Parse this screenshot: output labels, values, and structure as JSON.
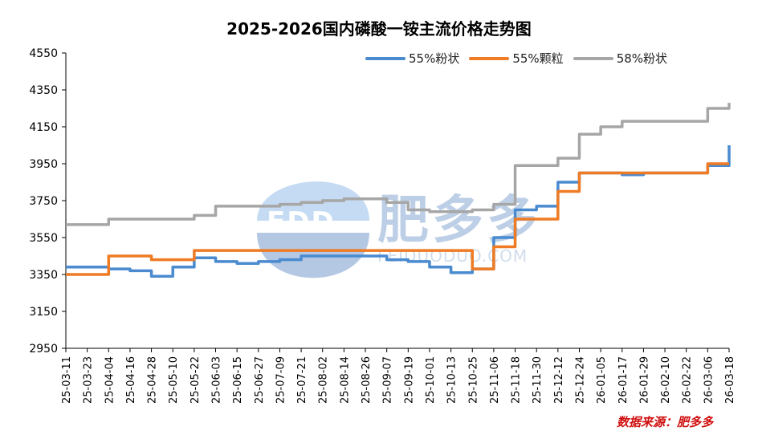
{
  "chart_data": {
    "type": "line",
    "title": "2025-2026国内磷酸一铵主流价格走势图",
    "xlabel": "",
    "ylabel": "",
    "ylim": [
      2950,
      4550
    ],
    "yticks": [
      2950,
      3150,
      3350,
      3550,
      3750,
      3950,
      4150,
      4350,
      4550
    ],
    "categories": [
      "25-03-11",
      "25-03-23",
      "25-04-04",
      "25-04-16",
      "25-04-28",
      "25-05-10",
      "25-05-22",
      "25-06-03",
      "25-06-15",
      "25-06-27",
      "25-07-09",
      "25-07-21",
      "25-08-02",
      "25-08-14",
      "25-08-26",
      "25-09-07",
      "25-09-19",
      "25-10-01",
      "25-10-13",
      "25-10-25",
      "25-11-06",
      "25-11-18",
      "25-11-30",
      "25-12-12",
      "25-12-24",
      "26-01-05",
      "26-01-17",
      "26-01-29",
      "26-02-10",
      "26-02-22",
      "26-03-06",
      "26-03-18"
    ],
    "series": [
      {
        "name": "55%粉状",
        "color": "#4a8bd0",
        "values": [
          3390,
          3390,
          3380,
          3370,
          3340,
          3390,
          3440,
          3420,
          3410,
          3420,
          3430,
          3450,
          3450,
          3450,
          3450,
          3430,
          3420,
          3390,
          3360,
          3380,
          3550,
          3700,
          3720,
          3850,
          3900,
          3900,
          3890,
          3900,
          3900,
          3900,
          3940,
          4050
        ]
      },
      {
        "name": "55%颗粒",
        "color": "#ef7b25",
        "values": [
          3350,
          3350,
          3450,
          3450,
          3430,
          3430,
          3480,
          3480,
          3480,
          3480,
          3480,
          3480,
          3480,
          3480,
          3480,
          3480,
          3480,
          3480,
          3480,
          3380,
          3500,
          3650,
          3650,
          3800,
          3900,
          3900,
          3900,
          3900,
          3900,
          3900,
          3950,
          3950
        ]
      },
      {
        "name": "58%粉状",
        "color": "#a6a6a6",
        "values": [
          3620,
          3620,
          3650,
          3650,
          3650,
          3650,
          3670,
          3720,
          3720,
          3720,
          3730,
          3740,
          3750,
          3760,
          3760,
          3740,
          3700,
          3690,
          3690,
          3700,
          3730,
          3940,
          3940,
          3980,
          4110,
          4150,
          4180,
          4180,
          4180,
          4180,
          4250,
          4280
        ]
      }
    ],
    "legend_position": "top-right",
    "grid": false
  },
  "source_note": "数据来源：肥多多",
  "watermark": {
    "brand": "肥多多",
    "logo_text": "FDD",
    "url": "FEIDUODUO.COM"
  }
}
